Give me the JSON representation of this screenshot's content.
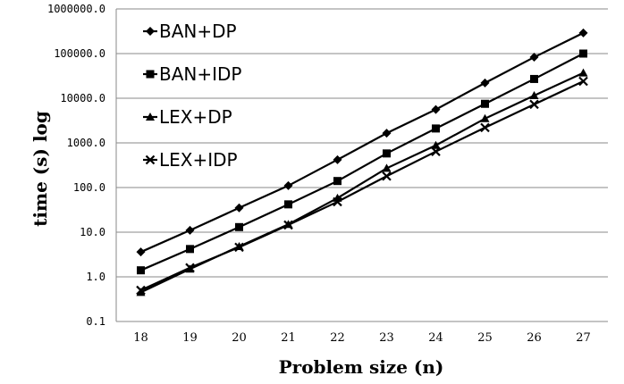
{
  "chart_data": {
    "type": "line",
    "title": "",
    "xlabel": "Problem size (n)",
    "ylabel": "time (s) log",
    "y_scale": "log",
    "ylim": [
      0.1,
      1000000
    ],
    "y_ticks": [
      "1000000.0",
      "100000.0",
      "10000.0",
      "1000.0",
      "100.0",
      "10.0",
      "1.0",
      "0.1"
    ],
    "categories": [
      "18",
      "19",
      "20",
      "21",
      "22",
      "23",
      "24",
      "25",
      "26",
      "27"
    ],
    "grid": "horizontal",
    "legend_position": "top-left",
    "color": "#000000",
    "series": [
      {
        "name": "BAN+DP",
        "marker": "diamond",
        "values": [
          3.6,
          11,
          35,
          110,
          420,
          1650,
          5600,
          22000,
          83000,
          290000
        ]
      },
      {
        "name": "BAN+IDP",
        "marker": "square",
        "values": [
          1.4,
          4.2,
          13,
          42,
          140,
          580,
          2100,
          7500,
          27000,
          100000
        ]
      },
      {
        "name": "LEX+DP",
        "marker": "triangle",
        "values": [
          0.45,
          1.5,
          4.8,
          15,
          58,
          270,
          880,
          3500,
          11500,
          37000
        ]
      },
      {
        "name": "LEX+IDP",
        "marker": "x",
        "values": [
          0.5,
          1.6,
          4.6,
          14.5,
          48,
          180,
          640,
          2200,
          7300,
          24000
        ]
      }
    ]
  }
}
